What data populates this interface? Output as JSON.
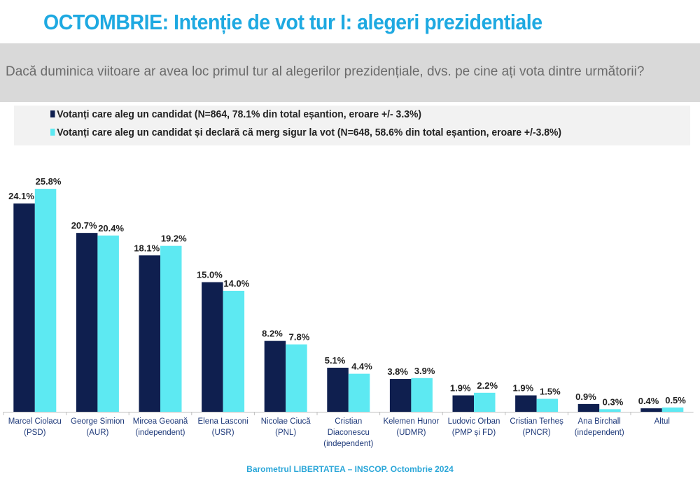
{
  "title": "OCTOMBRIE: Intenție de vot tur I: alegeri prezidentiale",
  "question": "Dacă duminica viitoare ar avea loc primul tur al alegerilor prezidențiale, dvs. pe cine ați vota dintre următorii?",
  "source": "Barometrul LIBERTATEA – INSCOP. Octombrie 2024",
  "colors": {
    "series1": "#0f1f4f",
    "series2": "#5de9f2",
    "title": "#1ea9e1"
  },
  "chart_data": {
    "type": "bar",
    "categories": [
      [
        "Marcel Ciolacu",
        "(PSD)"
      ],
      [
        "George Simion",
        "(AUR)"
      ],
      [
        "Mircea Geoană",
        "(independent)"
      ],
      [
        "Elena Lasconi",
        "(USR)"
      ],
      [
        "Nicolae Ciucă",
        "(PNL)"
      ],
      [
        "Cristian",
        "Diaconescu",
        "(independent)"
      ],
      [
        "Kelemen Hunor",
        "(UDMR)"
      ],
      [
        "Ludovic Orban",
        "(PMP și FD)"
      ],
      [
        "Cristian Terheș",
        "(PNCR)"
      ],
      [
        "Ana Birchall",
        "(independent)"
      ],
      [
        "Altul"
      ]
    ],
    "series": [
      {
        "name": "Votanți care aleg un candidat (N=864, 78.1% din total eșantion, eroare +/- 3.3%)",
        "values": [
          24.1,
          20.7,
          18.1,
          15.0,
          8.2,
          5.1,
          3.8,
          1.9,
          1.9,
          0.9,
          0.4
        ],
        "labels": [
          "24.1%",
          "20.7%",
          "18.1%",
          "15.0%",
          "8.2%",
          "5.1%",
          "3.8%",
          "1.9%",
          "1.9%",
          "0.9%",
          "0.4%"
        ]
      },
      {
        "name": "Votanți care aleg un candidat și declară că merg sigur la vot (N=648, 58.6% din total eșantion, eroare +/-3.8%)",
        "values": [
          25.8,
          20.4,
          19.2,
          14.0,
          7.8,
          4.4,
          3.9,
          2.2,
          1.5,
          0.3,
          0.5
        ],
        "labels": [
          "25.8%",
          "20.4%",
          "19.2%",
          "14.0%",
          "7.8%",
          "4.4%",
          "3.9%",
          "2.2%",
          "1.5%",
          "0.3%",
          "0.5%"
        ]
      }
    ],
    "ylim": [
      0,
      27
    ],
    "grid": false,
    "legend": "top"
  }
}
